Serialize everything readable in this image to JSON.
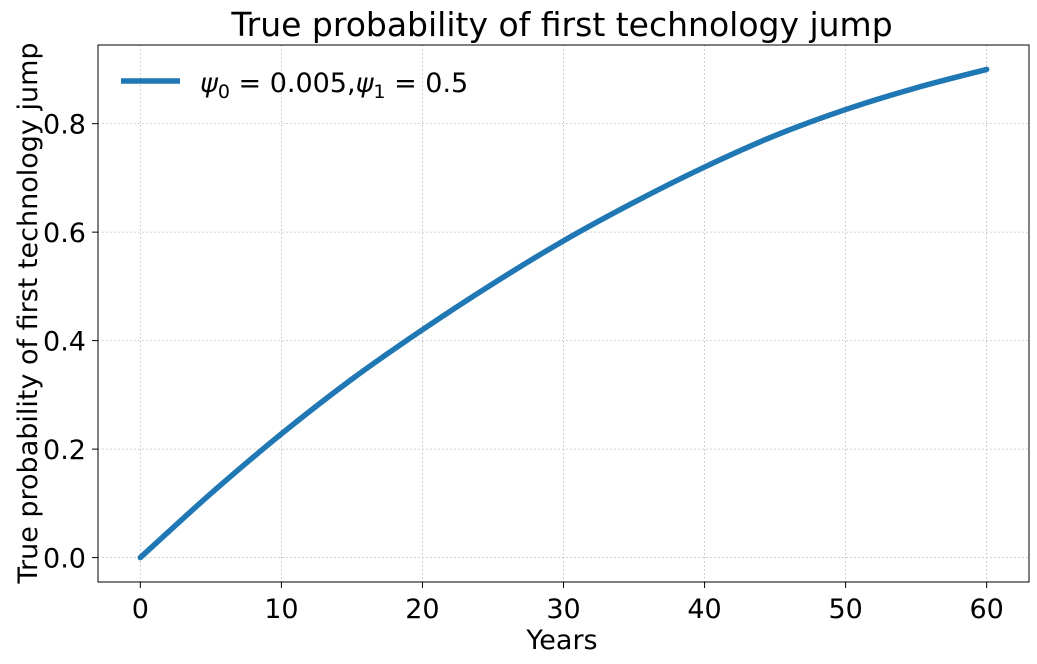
{
  "chart_data": {
    "type": "line",
    "title": "True probability of first technology jump",
    "xlabel": "Years",
    "ylabel": "True probability of first technology jump",
    "xlim": [
      -3,
      63
    ],
    "ylim": [
      -0.045,
      0.945
    ],
    "xticks": [
      0,
      10,
      20,
      30,
      40,
      50,
      60
    ],
    "yticks": [
      0.0,
      0.2,
      0.4,
      0.6,
      0.8
    ],
    "xtick_labels": [
      "0",
      "10",
      "20",
      "30",
      "40",
      "50",
      "60"
    ],
    "ytick_labels": [
      "0.0",
      "0.2",
      "0.4",
      "0.6",
      "0.8"
    ],
    "grid": true,
    "legend_position": "top-left",
    "series": [
      {
        "name": "ψ0 = 0.005,ψ1 = 0.5",
        "legend": {
          "psi": "ψ",
          "sub0": "0",
          "eq0": " = 0.005,",
          "sub1": "1",
          "eq1": " = 0.5"
        },
        "color": "#1f77b4",
        "x": [
          0,
          5,
          10,
          15,
          20,
          25,
          30,
          35,
          40,
          45,
          50,
          55,
          60
        ],
        "y": [
          0.0,
          0.118,
          0.228,
          0.329,
          0.42,
          0.505,
          0.584,
          0.655,
          0.72,
          0.778,
          0.826,
          0.866,
          0.9
        ]
      }
    ]
  }
}
